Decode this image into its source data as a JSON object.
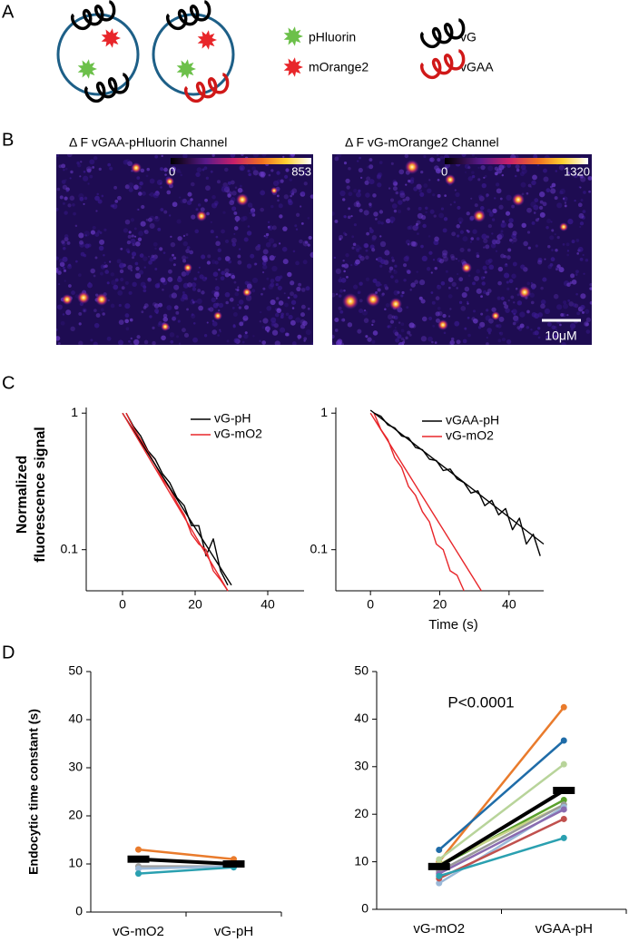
{
  "panel_labels": [
    "A",
    "B",
    "C",
    "D"
  ],
  "diagram": {
    "legend": [
      "pHluorin",
      "mOrange2",
      "vG",
      "vGAA"
    ]
  },
  "images": [
    {
      "title": "Δ F  vGAA-pHluorin Channel",
      "scale_min": 0,
      "scale_max": 853
    },
    {
      "title": "Δ F  vG-mOrange2 Channel",
      "scale_min": 0,
      "scale_max": 1320,
      "scale_bar": "10μM"
    }
  ],
  "chart_data": [
    {
      "type": "line",
      "log_y": true,
      "ylabel": [
        "Normalized",
        "fluorescence signal"
      ],
      "xlim": [
        -10,
        50
      ],
      "xticks": [
        0,
        20,
        40
      ],
      "ylim": [
        0.05,
        1.1
      ],
      "yticks": [
        0.1,
        1
      ],
      "series": [
        {
          "name": "vG-pH",
          "color": "#000000",
          "x": [
            1,
            3,
            5,
            7,
            9,
            11,
            13,
            15,
            17,
            19,
            21,
            23,
            25,
            27,
            29
          ],
          "values": [
            1,
            0.8,
            0.68,
            0.53,
            0.46,
            0.36,
            0.31,
            0.24,
            0.21,
            0.15,
            0.15,
            0.09,
            0.12,
            0.07,
            0.055
          ]
        },
        {
          "name": "vG-mO2",
          "color": "#e8262a",
          "x": [
            1,
            3,
            5,
            7,
            9,
            11,
            13,
            15,
            17,
            19,
            21,
            23,
            25,
            27,
            29
          ],
          "values": [
            1,
            0.78,
            0.64,
            0.52,
            0.42,
            0.33,
            0.28,
            0.22,
            0.18,
            0.13,
            0.11,
            0.1,
            0.07,
            0.06,
            0.05
          ]
        },
        {
          "color": "#000000",
          "x": [
            0,
            30
          ],
          "values": [
            1,
            0.055
          ]
        },
        {
          "color": "#e8262a",
          "x": [
            0,
            29
          ],
          "values": [
            1,
            0.05
          ]
        }
      ]
    },
    {
      "type": "line",
      "log_y": true,
      "xlabel": "Time (s)",
      "xlim": [
        -10,
        50
      ],
      "xticks": [
        0,
        20,
        40
      ],
      "ylim": [
        0.05,
        1.1
      ],
      "yticks": [
        0.1,
        1
      ],
      "series": [
        {
          "name": "vGAA-pH",
          "color": "#000000",
          "x": [
            1,
            3,
            5,
            7,
            9,
            11,
            13,
            15,
            17,
            19,
            21,
            23,
            25,
            27,
            29,
            31,
            33,
            35,
            37,
            39,
            41,
            43,
            45,
            47,
            49
          ],
          "values": [
            1,
            0.95,
            0.82,
            0.78,
            0.68,
            0.66,
            0.56,
            0.54,
            0.46,
            0.45,
            0.38,
            0.39,
            0.33,
            0.31,
            0.26,
            0.27,
            0.21,
            0.23,
            0.18,
            0.2,
            0.14,
            0.17,
            0.11,
            0.13,
            0.09
          ]
        },
        {
          "name": "vG-mO2",
          "color": "#e8262a",
          "x": [
            1,
            3,
            5,
            7,
            9,
            11,
            13,
            15,
            17,
            19,
            21,
            23,
            25,
            27
          ],
          "values": [
            1,
            0.76,
            0.64,
            0.47,
            0.4,
            0.29,
            0.25,
            0.19,
            0.16,
            0.11,
            0.1,
            0.07,
            0.065,
            0.05
          ]
        },
        {
          "color": "#000000",
          "x": [
            0,
            50
          ],
          "values": [
            1.05,
            0.11
          ]
        },
        {
          "color": "#e8262a",
          "x": [
            0,
            32
          ],
          "values": [
            1,
            0.05
          ]
        }
      ]
    },
    {
      "type": "line",
      "ylabel": "Endocytic time constant (s)",
      "categories": [
        "vG-mO2",
        "vG-pH"
      ],
      "ylim": [
        0,
        50
      ],
      "yticks": [
        0,
        10,
        20,
        30,
        40,
        50
      ],
      "series": [
        {
          "color": "#e97b2c",
          "marker": "circle",
          "values": [
            13,
            11
          ]
        },
        {
          "color": "#a0a0a0",
          "marker": "circle",
          "values": [
            9.5,
            9.5
          ]
        },
        {
          "color": "#9ab8d8",
          "marker": "circle",
          "values": [
            9,
            9.5
          ]
        },
        {
          "color": "#2aa0b0",
          "marker": "circle",
          "values": [
            8,
            9.3
          ]
        },
        {
          "color": "#000000",
          "marker": "square",
          "values": [
            11,
            10
          ]
        }
      ]
    },
    {
      "type": "line",
      "annotation": "P<0.0001",
      "categories": [
        "vG-mO2",
        "vGAA-pH"
      ],
      "ylim": [
        0,
        50
      ],
      "yticks": [
        0,
        10,
        20,
        30,
        40,
        50
      ],
      "series": [
        {
          "color": "#e97b2c",
          "marker": "circle",
          "values": [
            10,
            42.5
          ]
        },
        {
          "color": "#1f6ca8",
          "marker": "circle",
          "values": [
            12.5,
            35.5
          ]
        },
        {
          "color": "#b8d49a",
          "marker": "circle",
          "values": [
            10.5,
            30.5
          ]
        },
        {
          "color": "#5aa02c",
          "marker": "circle",
          "values": [
            9,
            23
          ]
        },
        {
          "color": "#c8d58a",
          "marker": "circle",
          "values": [
            9.5,
            22
          ]
        },
        {
          "color": "#9a9a9a",
          "marker": "circle",
          "values": [
            8,
            22
          ]
        },
        {
          "color": "#9ab8d8",
          "marker": "circle",
          "values": [
            5.5,
            21.5
          ]
        },
        {
          "color": "#8a6bb0",
          "marker": "circle",
          "values": [
            7.5,
            21
          ]
        },
        {
          "color": "#c0504d",
          "marker": "circle",
          "values": [
            6.5,
            19
          ]
        },
        {
          "color": "#2aa0b0",
          "marker": "circle",
          "values": [
            7,
            15
          ]
        },
        {
          "color": "#000000",
          "marker": "square",
          "values": [
            9,
            25
          ]
        }
      ]
    }
  ]
}
